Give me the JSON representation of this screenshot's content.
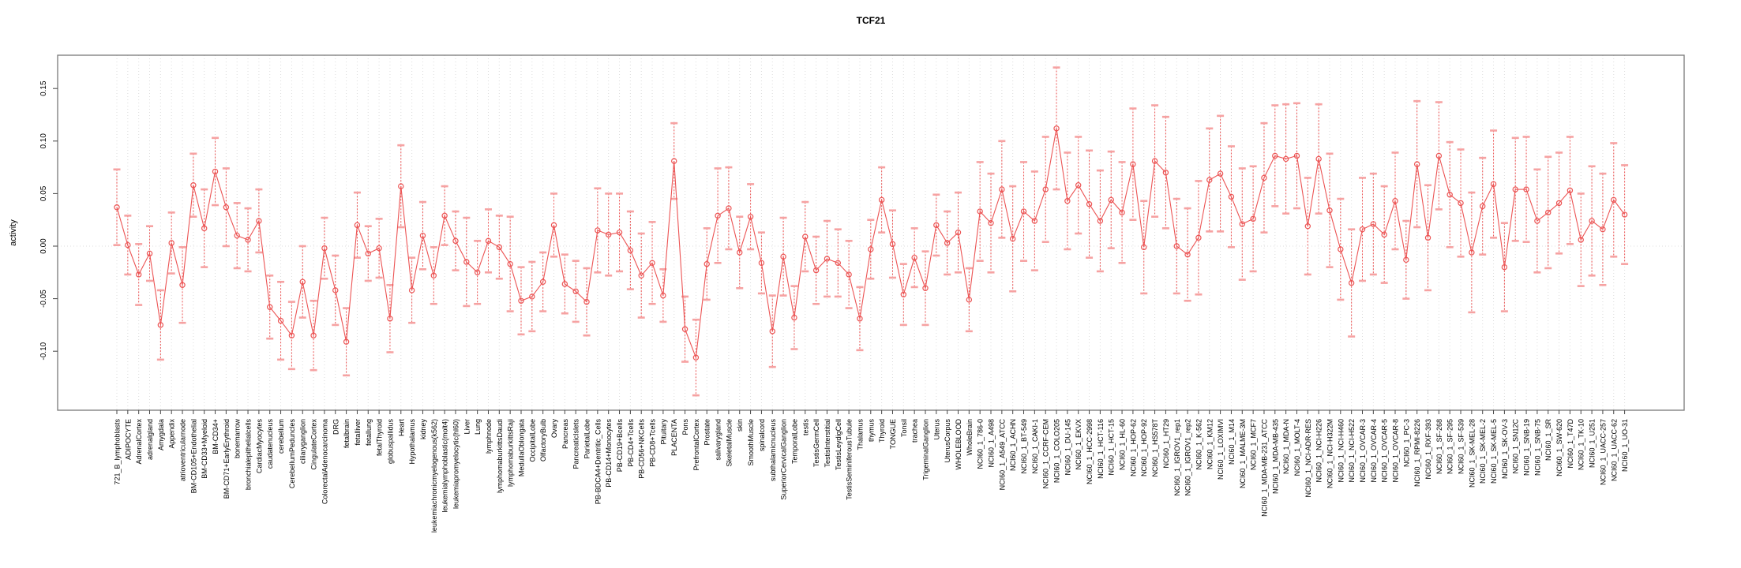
{
  "chart_data": {
    "type": "line",
    "title": "TCF21",
    "ylabel": "activity",
    "xlabel": "",
    "ylim": [
      -0.155,
      0.185
    ],
    "ytick_values": [
      -0.1,
      -0.05,
      0.0,
      0.05,
      0.1,
      0.15
    ],
    "ytick_labels": [
      "-0.10",
      "-0.05",
      "0.00",
      "0.05",
      "0.10",
      "0.15"
    ],
    "grid": "vertical-dotted-per-category-plus-zero-line",
    "legend": "none",
    "marker": "open-circle",
    "error_bars": true,
    "colors": {
      "series": "#ec5454",
      "error_cap": "#f6a2a2",
      "grid": "#dcdcdc",
      "box": "#7a7a7a",
      "tick": "#444444",
      "text": "#000000",
      "background": "#ffffff"
    },
    "categories": [
      "721_B_lymphoblasts",
      "ADIPOCYTE",
      "AdrenalCortex",
      "adrenalgland",
      "Amygdala",
      "Appendix",
      "atrioventricularnode",
      "BM-CD105+Endothelial",
      "BM-CD33+Myeloid",
      "BM-CD34+",
      "BM-CD71+EarlyErythroid",
      "bonemarrow",
      "bronchialepithelialcells",
      "CardiacMyocytes",
      "caudatenucleus",
      "cerebellum",
      "CerebellumPeduncles",
      "ciliaryganglion",
      "CingulateCortex",
      "ColorectalAdenocarcinoma",
      "DRG",
      "fetalbrain",
      "fetalliver",
      "fetallung",
      "fetalThyroid",
      "globuspallidus",
      "Heart",
      "Hypothalamus",
      "kidney",
      "leukemiachronicmyelogenous(k562)",
      "leukemialymphoblastic(molt4)",
      "leukemiapromyelocytic(hl60)",
      "Liver",
      "Lung",
      "lymphnode",
      "lymphomaburkittsDaudi",
      "lymphomaburkittsRaji",
      "MedullaOblongata",
      "OccipitalLobe",
      "OlfactoryBulb",
      "Ovary",
      "Pancreas",
      "PancreaticIslets",
      "ParietalLobe",
      "PB-BDCA4+Dentritic_Cells",
      "PB-CD14+Monocytes",
      "PB-CD19+Bcells",
      "PB-CD4+Tcells",
      "PB-CD56+NKCells",
      "PB-CD8+Tcells",
      "Pituitary",
      "PLACENTA",
      "Pons",
      "PrefrontalCortex",
      "Prostate",
      "salivarygland",
      "SkeletalMuscle",
      "skin",
      "SmoothMuscle",
      "spinalcord",
      "subthalamicnucleus",
      "SuperiorCervicalGanglion",
      "TemporalLobe",
      "testis",
      "TestisGermCell",
      "TestisInterstitial",
      "TestisLeydigCell",
      "TestisSeminiferousTubule",
      "Thalamus",
      "thymus",
      "Thyroid",
      "TONGUE",
      "Tonsil",
      "trachea",
      "TrigeminalGanglion",
      "Uterus",
      "UterusCorpus",
      "WHOLEBLOOD",
      "WholeBrain",
      "NCI60_1_786-0",
      "NCI60_1_A498",
      "NCI60_1_A549_ATCC",
      "NCI60_1_ACHN",
      "NCI60_1_BT-549",
      "NCI60_1_CAKI-1",
      "NCI60_1_CCRF-CEM",
      "NCI60_1_COLO205",
      "NCI60_1_DU-145",
      "NCI60_1_EKVX",
      "NCI60_1_HCC-2998",
      "NCI60_1_HCT-116",
      "NCI60_1_HCT-15",
      "NCI60_1_HL-60",
      "NCI60_1_HOP-62",
      "NCI60_1_HOP-92",
      "NCI60_1_HS578T",
      "NCI60_1_HT29",
      "NCI60_1_IGROV1_rep1",
      "NCI60_1_IGROV1_rep2",
      "NCI60_1_K-562",
      "NCI60_1_KM12",
      "NCI60_1_LOXIMVI",
      "NCI60_1_M14",
      "NCI60_1_MALME-3M",
      "NCI60_1_MCF7",
      "NCI60_1_MDA-MB-231_ATCC",
      "NCI60_1_MDA-MB-435",
      "NCI60_1_MDA-N",
      "NCI60_1_MOLT-4",
      "NCI60_1_NCI-ADR-RES",
      "NCI60_1_NCI-H226",
      "NCI60_1_NCI-H322M",
      "NCI60_1_NCI-H460",
      "NCI60_1_NCI-H522",
      "NCI60_1_OVCAR-3",
      "NCI60_1_OVCAR-4",
      "NCI60_1_OVCAR-5",
      "NCI60_1_OVCAR-8",
      "NCI60_1_PC-3",
      "NCI60_1_RPMI-8226",
      "NCI60_1_RXF-393",
      "NCI60_1_SF-268",
      "NCI60_1_SF-295",
      "NCI60_1_SF-539",
      "NCI60_1_SK-MEL-28",
      "NCI60_1_SK-MEL-2",
      "NCI60_1_SK-MEL-5",
      "NCI60_1_SK-OV-3",
      "NCI60_1_SN12C",
      "NCI60_1_SNB-19",
      "NCI60_1_SNB-75",
      "NCI60_1_SR",
      "NCI60_1_SW-620",
      "NCI60_1_T47D",
      "NCI60_1_TK-10",
      "NCI60_1_U251",
      "NCI60_1_UACC-257",
      "NCI60_1_UACC-62",
      "NCI60_1_UO-31"
    ],
    "values": [
      0.037,
      0.001,
      -0.027,
      -0.007,
      -0.075,
      0.003,
      -0.037,
      0.058,
      0.017,
      0.071,
      0.037,
      0.01,
      0.006,
      0.024,
      -0.058,
      -0.071,
      -0.085,
      -0.034,
      -0.085,
      -0.002,
      -0.042,
      -0.091,
      0.02,
      -0.007,
      -0.002,
      -0.069,
      0.057,
      -0.042,
      0.01,
      -0.028,
      0.029,
      0.005,
      -0.015,
      -0.025,
      0.005,
      -0.001,
      -0.017,
      -0.052,
      -0.048,
      -0.034,
      0.02,
      -0.036,
      -0.043,
      -0.053,
      0.015,
      0.011,
      0.013,
      -0.004,
      -0.028,
      -0.016,
      -0.047,
      0.081,
      -0.079,
      -0.106,
      -0.017,
      0.029,
      0.036,
      -0.006,
      0.028,
      -0.016,
      -0.081,
      -0.01,
      -0.068,
      0.009,
      -0.023,
      -0.012,
      -0.016,
      -0.027,
      -0.069,
      -0.003,
      0.044,
      0.002,
      -0.046,
      -0.011,
      -0.04,
      0.02,
      0.003,
      0.013,
      -0.051,
      0.033,
      0.022,
      0.054,
      0.007,
      0.033,
      0.024,
      0.054,
      0.112,
      0.043,
      0.058,
      0.04,
      0.024,
      0.044,
      0.032,
      0.078,
      -0.001,
      0.081,
      0.07,
      0.0,
      -0.008,
      0.008,
      0.063,
      0.069,
      0.047,
      0.021,
      0.026,
      0.065,
      0.086,
      0.083,
      0.086,
      0.019,
      0.083,
      0.034,
      -0.003,
      -0.035,
      0.016,
      0.021,
      0.011,
      0.043,
      -0.013,
      0.078,
      0.008,
      0.086,
      0.049,
      0.041,
      -0.006,
      0.038,
      0.059,
      -0.02,
      0.054,
      0.054,
      0.024,
      0.032,
      0.041,
      0.053,
      0.006,
      0.024,
      0.016,
      0.044,
      0.03
    ],
    "errors": [
      0.036,
      0.028,
      0.029,
      0.026,
      0.033,
      0.029,
      0.036,
      0.03,
      0.037,
      0.032,
      0.037,
      0.031,
      0.03,
      0.03,
      0.03,
      0.037,
      0.032,
      0.034,
      0.033,
      0.029,
      0.033,
      0.032,
      0.031,
      0.026,
      0.028,
      0.032,
      0.039,
      0.031,
      0.032,
      0.027,
      0.028,
      0.028,
      0.042,
      0.03,
      0.03,
      0.03,
      0.045,
      0.032,
      0.033,
      0.028,
      0.03,
      0.028,
      0.029,
      0.032,
      0.04,
      0.039,
      0.037,
      0.037,
      0.04,
      0.039,
      0.025,
      0.036,
      0.031,
      0.036,
      0.034,
      0.045,
      0.039,
      0.034,
      0.031,
      0.029,
      0.034,
      0.037,
      0.03,
      0.033,
      0.032,
      0.036,
      0.032,
      0.032,
      0.03,
      0.028,
      0.031,
      0.032,
      0.029,
      0.028,
      0.035,
      0.029,
      0.03,
      0.038,
      0.03,
      0.047,
      0.047,
      0.046,
      0.05,
      0.047,
      0.047,
      0.05,
      0.058,
      0.046,
      0.046,
      0.051,
      0.048,
      0.046,
      0.048,
      0.053,
      0.044,
      0.053,
      0.053,
      0.045,
      0.044,
      0.054,
      0.049,
      0.055,
      0.048,
      0.053,
      0.05,
      0.052,
      0.048,
      0.052,
      0.05,
      0.046,
      0.052,
      0.054,
      0.048,
      0.051,
      0.049,
      0.048,
      0.046,
      0.046,
      0.037,
      0.06,
      0.05,
      0.051,
      0.05,
      0.051,
      0.057,
      0.046,
      0.051,
      0.042,
      0.049,
      0.05,
      0.049,
      0.053,
      0.048,
      0.051,
      0.044,
      0.052,
      0.053,
      0.054,
      0.047
    ]
  }
}
